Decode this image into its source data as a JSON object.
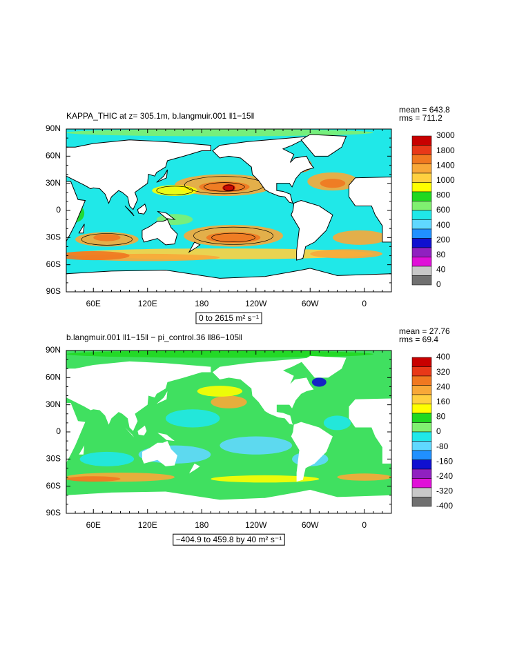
{
  "figures": [
    {
      "title": "KAPPA_THIC at z= 305.1m, b.langmuir.001 ‖1−15‖",
      "mean": "mean = 643.8",
      "rms": "rms = 711.2",
      "range_label": "0 to 2615 m² s⁻¹",
      "lat_labels": [
        "90N",
        "60N",
        "30N",
        "0",
        "30S",
        "60S",
        "90S"
      ],
      "lon_labels": [
        "60E",
        "120E",
        "180",
        "120W",
        "60W",
        "0"
      ],
      "colorbar": {
        "labels": [
          3000,
          1800,
          1400,
          1000,
          800,
          600,
          400,
          200,
          80,
          40,
          0
        ],
        "colors": [
          "#c80000",
          "#e83818",
          "#f07820",
          "#f8a838",
          "#ffd040",
          "#ffff00",
          "#20d820",
          "#80f070",
          "#20e8e8",
          "#60d8ff",
          "#2090ff",
          "#1010d0",
          "#9020c0",
          "#e010d8",
          "#c8c8c8",
          "#707070"
        ]
      }
    },
    {
      "title": "b.langmuir.001 ‖1−15‖ − pi_control.36 ‖86−105‖",
      "mean": "mean = 27.76",
      "rms": "rms = 69.4",
      "range_label": "−404.9 to 459.8 by 40 m² s⁻¹",
      "lat_labels": [
        "90N",
        "60N",
        "30N",
        "0",
        "30S",
        "60S",
        "90S"
      ],
      "lon_labels": [
        "60E",
        "120E",
        "180",
        "120W",
        "60W",
        "0"
      ],
      "colorbar": {
        "labels": [
          400,
          320,
          240,
          160,
          80,
          0,
          -80,
          -160,
          -240,
          -320,
          -400
        ],
        "colors": [
          "#c80000",
          "#e83818",
          "#f07820",
          "#f8a838",
          "#ffd040",
          "#ffff00",
          "#20d820",
          "#80f070",
          "#20e8e8",
          "#60d8ff",
          "#2090ff",
          "#1010d0",
          "#9020c0",
          "#e010d8",
          "#c8c8c8",
          "#707070"
        ]
      }
    }
  ]
}
